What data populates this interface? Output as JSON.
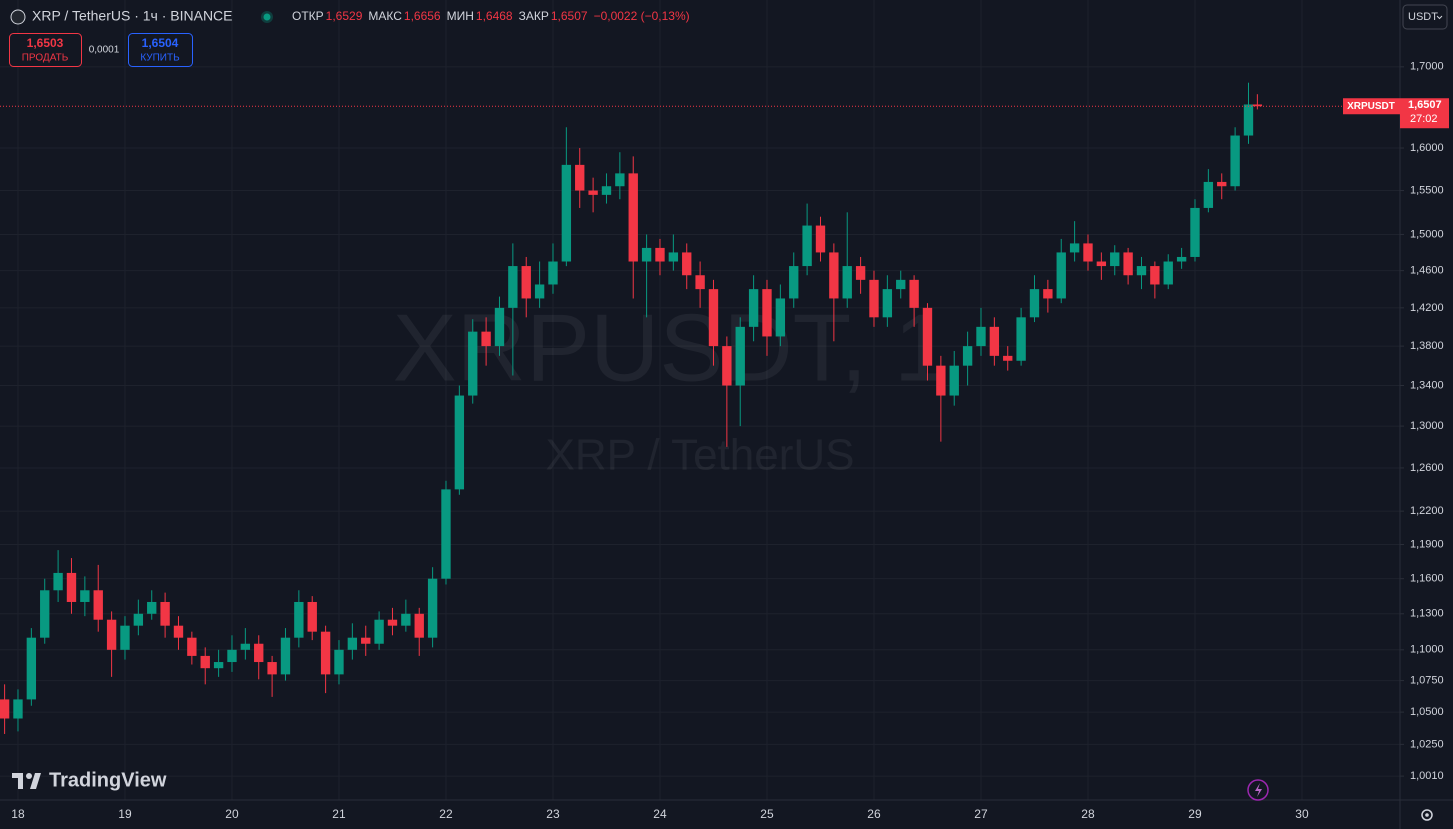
{
  "header": {
    "symbol": "XRP / TetherUS · 1ч · BINANCE",
    "ohlc": [
      {
        "label": "ОТКР",
        "value": "1,6529"
      },
      {
        "label": "МАКС",
        "value": "1,6656"
      },
      {
        "label": "МИН",
        "value": "1,6468"
      },
      {
        "label": "ЗАКР",
        "value": "1,6507"
      }
    ],
    "change": "−0,0022 (−0,13%)",
    "sell_price": "1,6503",
    "sell_label": "ПРОДАТЬ",
    "spread": "0,0001",
    "buy_price": "1,6504",
    "buy_label": "КУПИТЬ",
    "currency": "USDT",
    "logo": "TradingView"
  },
  "chart_data": {
    "type": "candlestick",
    "watermark": [
      "XRPUSDT, 1",
      "XRP / TetherUS"
    ],
    "log_scale": true,
    "grid": true,
    "up_color": "#089981",
    "down_color": "#f23645",
    "series": [
      {
        "name": "XRPUSDT",
        "x": [
          17.875,
          18,
          18.125,
          18.25,
          18.375,
          18.5,
          18.625,
          18.75,
          18.875,
          19,
          19.125,
          19.25,
          19.375,
          19.5,
          19.625,
          19.75,
          19.875,
          20,
          20.125,
          20.25,
          20.375,
          20.5,
          20.625,
          20.75,
          20.875,
          21,
          21.125,
          21.25,
          21.375,
          21.5,
          21.625,
          21.75,
          21.875,
          22,
          22.125,
          22.25,
          22.375,
          22.5,
          22.625,
          22.75,
          22.875,
          23,
          23.125,
          23.25,
          23.375,
          23.5,
          23.625,
          23.75,
          23.875,
          24,
          24.125,
          24.25,
          24.375,
          24.5,
          24.625,
          24.75,
          24.875,
          25,
          25.125,
          25.25,
          25.375,
          25.5,
          25.625,
          25.75,
          25.875,
          26,
          26.125,
          26.25,
          26.375,
          26.5,
          26.625,
          26.75,
          26.875,
          27,
          27.125,
          27.25,
          27.375,
          27.5,
          27.625,
          27.75,
          27.875,
          28,
          28.125,
          28.25,
          28.375,
          28.5,
          28.625,
          28.75,
          28.875,
          29,
          29.125,
          29.25,
          29.375,
          29.5,
          29.583
        ],
        "open": [
          1.06,
          1.045,
          1.06,
          1.11,
          1.15,
          1.165,
          1.14,
          1.15,
          1.125,
          1.1,
          1.12,
          1.13,
          1.14,
          1.12,
          1.11,
          1.095,
          1.085,
          1.09,
          1.1,
          1.105,
          1.09,
          1.08,
          1.11,
          1.14,
          1.115,
          1.08,
          1.1,
          1.11,
          1.105,
          1.125,
          1.12,
          1.13,
          1.11,
          1.16,
          1.24,
          1.33,
          1.395,
          1.38,
          1.42,
          1.465,
          1.43,
          1.445,
          1.47,
          1.58,
          1.55,
          1.545,
          1.555,
          1.57,
          1.47,
          1.485,
          1.47,
          1.48,
          1.455,
          1.44,
          1.38,
          1.34,
          1.4,
          1.44,
          1.39,
          1.43,
          1.465,
          1.51,
          1.48,
          1.43,
          1.465,
          1.45,
          1.41,
          1.44,
          1.45,
          1.42,
          1.36,
          1.33,
          1.36,
          1.38,
          1.4,
          1.37,
          1.365,
          1.41,
          1.44,
          1.43,
          1.48,
          1.49,
          1.47,
          1.465,
          1.48,
          1.455,
          1.465,
          1.445,
          1.47,
          1.475,
          1.53,
          1.56,
          1.555,
          1.615,
          1.6529
        ],
        "high": [
          1.072,
          1.068,
          1.118,
          1.16,
          1.185,
          1.178,
          1.162,
          1.172,
          1.132,
          1.128,
          1.142,
          1.15,
          1.148,
          1.128,
          1.115,
          1.102,
          1.1,
          1.112,
          1.118,
          1.112,
          1.095,
          1.118,
          1.15,
          1.145,
          1.12,
          1.108,
          1.122,
          1.12,
          1.132,
          1.135,
          1.142,
          1.135,
          1.17,
          1.248,
          1.34,
          1.408,
          1.41,
          1.432,
          1.49,
          1.475,
          1.47,
          1.49,
          1.625,
          1.6,
          1.565,
          1.57,
          1.595,
          1.59,
          1.5,
          1.495,
          1.5,
          1.49,
          1.47,
          1.45,
          1.39,
          1.41,
          1.455,
          1.45,
          1.445,
          1.48,
          1.535,
          1.52,
          1.49,
          1.525,
          1.475,
          1.46,
          1.455,
          1.46,
          1.455,
          1.425,
          1.37,
          1.375,
          1.395,
          1.42,
          1.41,
          1.38,
          1.42,
          1.455,
          1.45,
          1.495,
          1.515,
          1.5,
          1.48,
          1.488,
          1.485,
          1.475,
          1.47,
          1.478,
          1.485,
          1.54,
          1.575,
          1.57,
          1.625,
          1.68,
          1.6656
        ],
        "low": [
          1.033,
          1.035,
          1.055,
          1.105,
          1.14,
          1.13,
          1.128,
          1.115,
          1.078,
          1.092,
          1.112,
          1.125,
          1.11,
          1.1,
          1.088,
          1.072,
          1.078,
          1.082,
          1.092,
          1.076,
          1.062,
          1.075,
          1.102,
          1.108,
          1.065,
          1.072,
          1.092,
          1.095,
          1.1,
          1.112,
          1.115,
          1.095,
          1.102,
          1.155,
          1.235,
          1.322,
          1.36,
          1.37,
          1.35,
          1.41,
          1.42,
          1.435,
          1.465,
          1.53,
          1.525,
          1.535,
          1.54,
          1.43,
          1.41,
          1.455,
          1.46,
          1.44,
          1.42,
          1.36,
          1.28,
          1.3,
          1.385,
          1.37,
          1.38,
          1.42,
          1.455,
          1.47,
          1.385,
          1.42,
          1.435,
          1.4,
          1.4,
          1.43,
          1.4,
          1.345,
          1.285,
          1.32,
          1.34,
          1.37,
          1.36,
          1.355,
          1.36,
          1.405,
          1.415,
          1.425,
          1.47,
          1.46,
          1.45,
          1.455,
          1.445,
          1.44,
          1.43,
          1.44,
          1.462,
          1.47,
          1.525,
          1.54,
          1.55,
          1.605,
          1.6468
        ],
        "close": [
          1.045,
          1.06,
          1.11,
          1.15,
          1.165,
          1.14,
          1.15,
          1.125,
          1.1,
          1.12,
          1.13,
          1.14,
          1.12,
          1.11,
          1.095,
          1.085,
          1.09,
          1.1,
          1.105,
          1.09,
          1.08,
          1.11,
          1.14,
          1.115,
          1.08,
          1.1,
          1.11,
          1.105,
          1.125,
          1.12,
          1.13,
          1.11,
          1.16,
          1.24,
          1.33,
          1.395,
          1.38,
          1.42,
          1.465,
          1.43,
          1.445,
          1.47,
          1.58,
          1.55,
          1.545,
          1.555,
          1.57,
          1.47,
          1.485,
          1.47,
          1.48,
          1.455,
          1.44,
          1.38,
          1.34,
          1.4,
          1.44,
          1.39,
          1.43,
          1.465,
          1.51,
          1.48,
          1.43,
          1.465,
          1.45,
          1.41,
          1.44,
          1.45,
          1.42,
          1.36,
          1.33,
          1.36,
          1.38,
          1.4,
          1.37,
          1.365,
          1.41,
          1.44,
          1.43,
          1.48,
          1.49,
          1.47,
          1.465,
          1.48,
          1.455,
          1.465,
          1.445,
          1.47,
          1.475,
          1.53,
          1.56,
          1.555,
          1.615,
          1.6529,
          1.6507
        ]
      }
    ],
    "last_price": {
      "value": 1.6507,
      "label": "1,6507"
    },
    "countdown": "27:02",
    "xlim": [
      17.832,
      30.916
    ],
    "xticks": [
      18,
      19,
      20,
      21,
      22,
      23,
      24,
      25,
      26,
      27,
      28,
      29,
      30
    ],
    "ylim": [
      0.9833,
      1.787
    ],
    "yticks": [
      {
        "value": 1.001,
        "label": "1,0010"
      },
      {
        "value": 1.025,
        "label": "1,0250"
      },
      {
        "value": 1.05,
        "label": "1,0500"
      },
      {
        "value": 1.075,
        "label": "1,0750"
      },
      {
        "value": 1.1,
        "label": "1,1000"
      },
      {
        "value": 1.13,
        "label": "1,1300"
      },
      {
        "value": 1.16,
        "label": "1,1600"
      },
      {
        "value": 1.19,
        "label": "1,1900"
      },
      {
        "value": 1.22,
        "label": "1,2200"
      },
      {
        "value": 1.26,
        "label": "1,2600"
      },
      {
        "value": 1.3,
        "label": "1,3000"
      },
      {
        "value": 1.34,
        "label": "1,3400"
      },
      {
        "value": 1.38,
        "label": "1,3800"
      },
      {
        "value": 1.42,
        "label": "1,4200"
      },
      {
        "value": 1.46,
        "label": "1,4600"
      },
      {
        "value": 1.5,
        "label": "1,5000"
      },
      {
        "value": 1.55,
        "label": "1,5500"
      },
      {
        "value": 1.6,
        "label": "1,6000"
      },
      {
        "value": 1.7,
        "label": "1,7000"
      }
    ]
  }
}
